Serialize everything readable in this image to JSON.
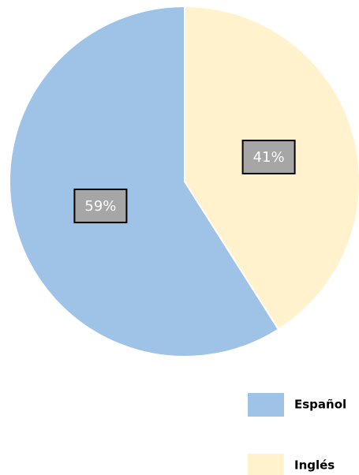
{
  "chart_data": {
    "type": "pie",
    "categories": [
      "Español",
      "Inglés"
    ],
    "values": [
      59,
      41
    ],
    "value_labels": [
      "59%",
      "41%"
    ],
    "colors": [
      "#9fc3e7",
      "#fff2cc"
    ],
    "legend": "bottom-right"
  }
}
